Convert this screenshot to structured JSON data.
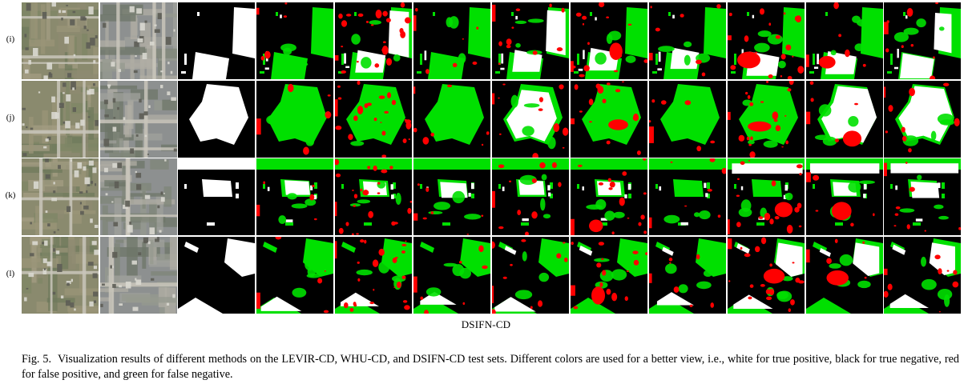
{
  "figure": {
    "dataset_label": "DSIFN-CD",
    "rows": [
      {
        "label": "(i)",
        "kind": "blocks"
      },
      {
        "label": "(j)",
        "kind": "polygon"
      },
      {
        "label": "(k)",
        "kind": "band"
      },
      {
        "label": "(l)",
        "kind": "diagonal"
      }
    ],
    "tile_types": [
      "image-t1",
      "image-t2",
      "ground-truth",
      "method-1",
      "method-2",
      "method-3",
      "method-4",
      "method-5",
      "method-6",
      "method-7",
      "method-8",
      "method-9"
    ],
    "legend_colors": {
      "true_positive": "#ffffff",
      "true_negative": "#000000",
      "false_positive": "#ff0000",
      "false_negative": "#00e000"
    }
  },
  "caption": {
    "fig_number": "Fig. 5.",
    "text": "Visualization results of different methods on the LEVIR-CD, WHU-CD, and DSIFN-CD test sets. Different colors are used for a better view, i.e., white for true positive, black for true negative, red for false positive, and green for false negative."
  }
}
